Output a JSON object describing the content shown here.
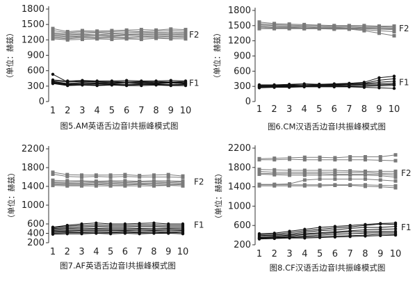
{
  "chart_data": [
    {
      "type": "line",
      "caption": "图5.AM英语舌边音l共振峰模式图",
      "ylabel": "（单位：赫兹）",
      "ylim": [
        0,
        1800
      ],
      "yticks": [
        0,
        300,
        600,
        900,
        1200,
        1500,
        1800
      ],
      "x": [
        1,
        2,
        3,
        4,
        5,
        6,
        7,
        8,
        9,
        10
      ],
      "series_labels": [
        "F2",
        "F1"
      ],
      "series": [
        {
          "group": "F2",
          "values": [
            1420,
            1360,
            1380,
            1370,
            1380,
            1390,
            1400,
            1390,
            1410,
            1400
          ]
        },
        {
          "group": "F2",
          "values": [
            1380,
            1340,
            1360,
            1350,
            1360,
            1370,
            1360,
            1370,
            1380,
            1370
          ]
        },
        {
          "group": "F2",
          "values": [
            1340,
            1320,
            1330,
            1340,
            1330,
            1340,
            1350,
            1340,
            1350,
            1340
          ]
        },
        {
          "group": "F2",
          "values": [
            1320,
            1300,
            1310,
            1300,
            1320,
            1310,
            1320,
            1330,
            1320,
            1330
          ]
        },
        {
          "group": "F2",
          "values": [
            1300,
            1280,
            1290,
            1300,
            1290,
            1300,
            1310,
            1300,
            1310,
            1300
          ]
        },
        {
          "group": "F2",
          "values": [
            1280,
            1260,
            1270,
            1280,
            1270,
            1290,
            1280,
            1290,
            1280,
            1290
          ]
        },
        {
          "group": "F2",
          "values": [
            1260,
            1240,
            1260,
            1250,
            1260,
            1250,
            1270,
            1260,
            1270,
            1260
          ]
        },
        {
          "group": "F2",
          "values": [
            1240,
            1220,
            1240,
            1230,
            1240,
            1230,
            1240,
            1250,
            1240,
            1250
          ]
        },
        {
          "group": "F2",
          "values": [
            1220,
            1200,
            1210,
            1220,
            1210,
            1220,
            1210,
            1230,
            1220,
            1220
          ]
        },
        {
          "group": "F1",
          "values": [
            530,
            380,
            390,
            380,
            370,
            380,
            380,
            370,
            380,
            370
          ]
        },
        {
          "group": "F1",
          "values": [
            420,
            400,
            410,
            400,
            400,
            410,
            400,
            400,
            410,
            400
          ]
        },
        {
          "group": "F1",
          "values": [
            400,
            380,
            400,
            390,
            390,
            380,
            390,
            390,
            380,
            390
          ]
        },
        {
          "group": "F1",
          "values": [
            390,
            350,
            370,
            360,
            370,
            360,
            370,
            360,
            370,
            360
          ]
        },
        {
          "group": "F1",
          "values": [
            380,
            340,
            360,
            350,
            350,
            360,
            350,
            350,
            360,
            350
          ]
        },
        {
          "group": "F1",
          "values": [
            370,
            330,
            340,
            340,
            340,
            330,
            340,
            340,
            330,
            340
          ]
        },
        {
          "group": "F1",
          "values": [
            360,
            320,
            330,
            320,
            330,
            320,
            330,
            330,
            320,
            330
          ]
        },
        {
          "group": "F1",
          "values": [
            350,
            310,
            320,
            310,
            320,
            310,
            310,
            320,
            310,
            310
          ]
        }
      ]
    },
    {
      "type": "line",
      "caption": "图6.CM汉语舌边音l共振峰模式图",
      "ylabel": "（单位：赫兹）",
      "ylim": [
        0,
        1800
      ],
      "yticks": [
        0,
        300,
        600,
        900,
        1200,
        1500,
        1800
      ],
      "x": [
        1,
        2,
        3,
        4,
        5,
        6,
        7,
        8,
        9,
        10
      ],
      "series_labels": [
        "F2",
        "F1"
      ],
      "series": [
        {
          "group": "F2",
          "values": [
            1570,
            1540,
            1530,
            1520,
            1510,
            1500,
            1500,
            1500,
            1490,
            1490
          ]
        },
        {
          "group": "F2",
          "values": [
            1540,
            1520,
            1510,
            1500,
            1500,
            1490,
            1490,
            1480,
            1480,
            1470
          ]
        },
        {
          "group": "F2",
          "values": [
            1520,
            1500,
            1490,
            1480,
            1480,
            1470,
            1470,
            1460,
            1460,
            1450
          ]
        },
        {
          "group": "F2",
          "values": [
            1500,
            1480,
            1470,
            1470,
            1460,
            1460,
            1450,
            1450,
            1440,
            1440
          ]
        },
        {
          "group": "F2",
          "values": [
            1480,
            1460,
            1460,
            1450,
            1450,
            1450,
            1440,
            1440,
            1430,
            1420
          ]
        },
        {
          "group": "F2",
          "values": [
            1460,
            1450,
            1450,
            1440,
            1440,
            1440,
            1440,
            1420,
            1400,
            1380
          ]
        },
        {
          "group": "F2",
          "values": [
            1440,
            1440,
            1440,
            1440,
            1440,
            1430,
            1430,
            1400,
            1350,
            1300
          ]
        },
        {
          "group": "F1",
          "values": [
            330,
            330,
            340,
            350,
            340,
            350,
            360,
            380,
            470,
            500
          ]
        },
        {
          "group": "F1",
          "values": [
            320,
            320,
            330,
            330,
            340,
            340,
            350,
            360,
            420,
            450
          ]
        },
        {
          "group": "F1",
          "values": [
            310,
            310,
            320,
            330,
            330,
            330,
            340,
            350,
            380,
            400
          ]
        },
        {
          "group": "F1",
          "values": [
            300,
            300,
            310,
            310,
            320,
            320,
            330,
            340,
            350,
            360
          ]
        },
        {
          "group": "F1",
          "values": [
            290,
            300,
            300,
            310,
            310,
            310,
            310,
            320,
            330,
            340
          ]
        },
        {
          "group": "F1",
          "values": [
            280,
            290,
            290,
            300,
            300,
            300,
            300,
            300,
            310,
            320
          ]
        },
        {
          "group": "F1",
          "values": [
            270,
            280,
            280,
            290,
            290,
            290,
            290,
            280,
            270,
            260
          ]
        }
      ]
    },
    {
      "type": "line",
      "caption": "图7.AF英语舌边音l共振峰模式图",
      "ylabel": "（单位：赫兹）",
      "ylim": [
        200,
        2200
      ],
      "yticks": [
        200,
        600,
        1000,
        1400,
        1800,
        2200
      ],
      "extra_ytick": 400,
      "x": [
        1,
        2,
        3,
        4,
        5,
        6,
        7,
        8,
        9,
        10
      ],
      "series_labels": [
        "F2",
        "F1"
      ],
      "series": [
        {
          "group": "F2",
          "values": [
            1700,
            1650,
            1640,
            1640,
            1640,
            1650,
            1630,
            1640,
            1650,
            1620
          ]
        },
        {
          "group": "F2",
          "values": [
            1660,
            1610,
            1600,
            1610,
            1600,
            1610,
            1600,
            1600,
            1600,
            1590
          ]
        },
        {
          "group": "F2",
          "values": [
            1530,
            1520,
            1520,
            1510,
            1520,
            1520,
            1510,
            1520,
            1520,
            1510
          ]
        },
        {
          "group": "F2",
          "values": [
            1500,
            1490,
            1500,
            1490,
            1500,
            1490,
            1500,
            1500,
            1490,
            1500
          ]
        },
        {
          "group": "F2",
          "values": [
            1480,
            1470,
            1470,
            1480,
            1470,
            1480,
            1470,
            1470,
            1480,
            1470
          ]
        },
        {
          "group": "F2",
          "values": [
            1460,
            1450,
            1450,
            1450,
            1460,
            1450,
            1450,
            1460,
            1450,
            1450
          ]
        },
        {
          "group": "F2",
          "values": [
            1440,
            1430,
            1430,
            1440,
            1430,
            1430,
            1440,
            1430,
            1430,
            1440
          ]
        },
        {
          "group": "F2",
          "values": [
            1420,
            1410,
            1410,
            1410,
            1410,
            1410,
            1410,
            1410,
            1420,
            1410
          ]
        },
        {
          "group": "F1",
          "values": [
            530,
            570,
            600,
            620,
            600,
            600,
            610,
            620,
            600,
            600
          ]
        },
        {
          "group": "F1",
          "values": [
            520,
            550,
            570,
            580,
            570,
            570,
            580,
            580,
            570,
            570
          ]
        },
        {
          "group": "F1",
          "values": [
            500,
            520,
            540,
            550,
            540,
            540,
            550,
            550,
            540,
            540
          ]
        },
        {
          "group": "F1",
          "values": [
            480,
            500,
            510,
            510,
            510,
            510,
            510,
            510,
            510,
            510
          ]
        },
        {
          "group": "F1",
          "values": [
            460,
            470,
            480,
            490,
            480,
            480,
            490,
            480,
            490,
            480
          ]
        },
        {
          "group": "F1",
          "values": [
            440,
            450,
            460,
            460,
            460,
            460,
            460,
            460,
            460,
            460
          ]
        },
        {
          "group": "F1",
          "values": [
            420,
            430,
            430,
            440,
            430,
            440,
            430,
            440,
            430,
            440
          ]
        },
        {
          "group": "F1",
          "values": [
            400,
            410,
            410,
            410,
            410,
            420,
            410,
            410,
            420,
            410
          ]
        },
        {
          "group": "F1",
          "values": [
            380,
            390,
            390,
            400,
            390,
            400,
            390,
            400,
            400,
            390
          ]
        }
      ]
    },
    {
      "type": "line",
      "caption": "图8.CF汉语舌边音l共振峰模式图",
      "ylabel": "（单位：赫兹）",
      "ylim": [
        200,
        2200
      ],
      "yticks": [
        200,
        600,
        1000,
        1400,
        1800,
        2200
      ],
      "x": [
        1,
        2,
        3,
        4,
        5,
        6,
        7,
        8,
        9,
        10
      ],
      "series_labels": [
        "F2",
        "F1"
      ],
      "series": [
        {
          "group": "F2",
          "values": [
            1980,
            1990,
            2000,
            2010,
            2010,
            2000,
            2020,
            2020,
            2020,
            2060
          ]
        },
        {
          "group": "F2",
          "values": [
            1960,
            1960,
            1970,
            1960,
            1960,
            1960,
            1960,
            1960,
            1950,
            1940
          ]
        },
        {
          "group": "F2",
          "values": [
            1760,
            1750,
            1740,
            1740,
            1740,
            1740,
            1730,
            1720,
            1720,
            1720
          ]
        },
        {
          "group": "F2",
          "values": [
            1720,
            1700,
            1700,
            1700,
            1700,
            1700,
            1700,
            1700,
            1680,
            1680
          ]
        },
        {
          "group": "F2",
          "values": [
            1680,
            1670,
            1670,
            1670,
            1670,
            1660,
            1660,
            1660,
            1660,
            1640
          ]
        },
        {
          "group": "F2",
          "values": [
            1660,
            1650,
            1640,
            1640,
            1640,
            1640,
            1640,
            1640,
            1630,
            1600
          ]
        },
        {
          "group": "F2",
          "values": [
            1450,
            1450,
            1460,
            1540,
            1560,
            1560,
            1560,
            1560,
            1540,
            1520
          ]
        },
        {
          "group": "F2",
          "values": [
            1440,
            1440,
            1440,
            1440,
            1440,
            1440,
            1440,
            1440,
            1430,
            1420
          ]
        },
        {
          "group": "F2",
          "values": [
            1420,
            1420,
            1420,
            1420,
            1420,
            1430,
            1430,
            1410,
            1400,
            1380
          ]
        },
        {
          "group": "F1",
          "values": [
            430,
            440,
            480,
            520,
            560,
            580,
            600,
            620,
            640,
            650
          ]
        },
        {
          "group": "F1",
          "values": [
            410,
            420,
            450,
            490,
            520,
            550,
            570,
            600,
            630,
            620
          ]
        },
        {
          "group": "F1",
          "values": [
            390,
            400,
            420,
            460,
            490,
            510,
            540,
            560,
            560,
            580
          ]
        },
        {
          "group": "F1",
          "values": [
            370,
            380,
            400,
            430,
            450,
            470,
            490,
            510,
            520,
            530
          ]
        },
        {
          "group": "F1",
          "values": [
            350,
            360,
            380,
            410,
            430,
            450,
            470,
            470,
            480,
            480
          ]
        },
        {
          "group": "F1",
          "values": [
            340,
            350,
            360,
            380,
            400,
            420,
            430,
            440,
            450,
            450
          ]
        },
        {
          "group": "F1",
          "values": [
            330,
            340,
            350,
            360,
            370,
            380,
            390,
            400,
            420,
            420
          ]
        },
        {
          "group": "F1",
          "values": [
            320,
            330,
            340,
            340,
            350,
            360,
            370,
            380,
            390,
            400
          ]
        }
      ]
    }
  ],
  "colors": {
    "F2": "#7a7a7a",
    "F1": "#111111",
    "axis": "#333333"
  }
}
